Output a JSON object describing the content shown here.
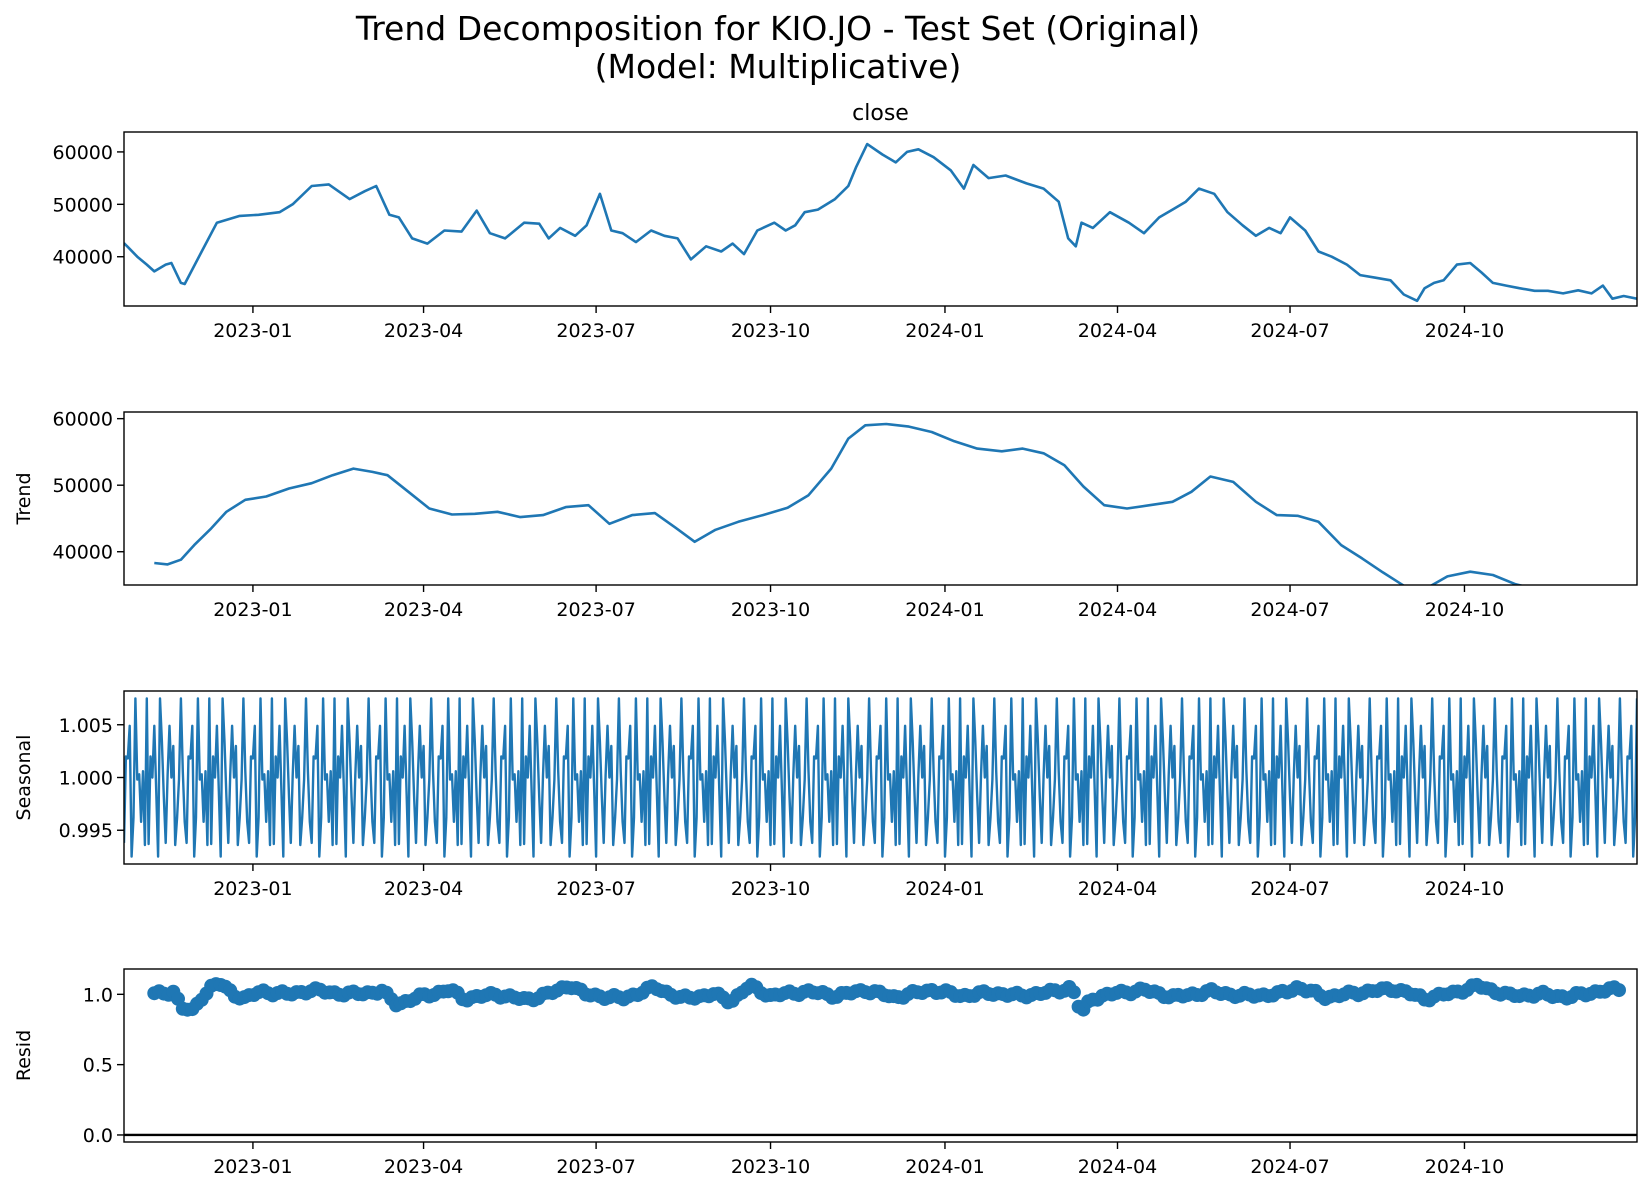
{
  "title_line1": "Trend Decomposition for KIO.JO - Test Set (Original)",
  "title_line2": "(Model: Multiplicative)",
  "chart_data": [
    {
      "type": "line",
      "title": "close",
      "ylabel": "",
      "ylim": [
        30600,
        63800
      ],
      "yticks": [
        40000,
        50000,
        60000
      ],
      "ytick_labels": [
        "40000",
        "50000",
        "60000"
      ],
      "x_start": "2022-10-25",
      "x_end": "2024-12-31",
      "xticks": [
        "2023-01-01",
        "2023-04-01",
        "2023-07-01",
        "2023-10-01",
        "2024-01-01",
        "2024-04-01",
        "2024-07-01",
        "2024-10-01"
      ],
      "xtick_labels": [
        "2023-01",
        "2023-04",
        "2023-07",
        "2023-10",
        "2024-01",
        "2024-04",
        "2024-07",
        "2024-10"
      ],
      "color": "#1f77b4",
      "series": [
        {
          "x": [
            "2022-10-25",
            "2022-11-01",
            "2022-11-06",
            "2022-11-10",
            "2022-11-16",
            "2022-11-19",
            "2022-11-24",
            "2022-11-26",
            "2022-12-05",
            "2022-12-13",
            "2022-12-25",
            "2023-01-04",
            "2023-01-15",
            "2023-01-22",
            "2023-02-01",
            "2023-02-10",
            "2023-02-21",
            "2023-03-01",
            "2023-03-07",
            "2023-03-14",
            "2023-03-19",
            "2023-03-26",
            "2023-04-03",
            "2023-04-12",
            "2023-04-21",
            "2023-04-29",
            "2023-05-06",
            "2023-05-14",
            "2023-05-24",
            "2023-06-01",
            "2023-06-06",
            "2023-06-12",
            "2023-06-20",
            "2023-06-26",
            "2023-07-03",
            "2023-07-09",
            "2023-07-15",
            "2023-07-22",
            "2023-07-30",
            "2023-08-06",
            "2023-08-13",
            "2023-08-20",
            "2023-08-28",
            "2023-09-05",
            "2023-09-11",
            "2023-09-17",
            "2023-09-24",
            "2023-10-03",
            "2023-10-09",
            "2023-10-14",
            "2023-10-19",
            "2023-10-26",
            "2023-11-04",
            "2023-11-11",
            "2023-11-15",
            "2023-11-21",
            "2023-11-29",
            "2023-12-06",
            "2023-12-12",
            "2023-12-18",
            "2023-12-26",
            "2024-01-04",
            "2024-01-11",
            "2024-01-16",
            "2024-01-24",
            "2024-02-02",
            "2024-02-13",
            "2024-02-22",
            "2024-03-01",
            "2024-03-06",
            "2024-03-10",
            "2024-03-13",
            "2024-03-19",
            "2024-03-28",
            "2024-04-07",
            "2024-04-15",
            "2024-04-23",
            "2024-04-30",
            "2024-05-07",
            "2024-05-14",
            "2024-05-22",
            "2024-05-29",
            "2024-06-06",
            "2024-06-13",
            "2024-06-20",
            "2024-06-26",
            "2024-07-01",
            "2024-07-09",
            "2024-07-16",
            "2024-07-23",
            "2024-07-31",
            "2024-08-07",
            "2024-08-15",
            "2024-08-23",
            "2024-08-30",
            "2024-09-06",
            "2024-09-10",
            "2024-09-15",
            "2024-09-20",
            "2024-09-27",
            "2024-10-04",
            "2024-10-10",
            "2024-10-16",
            "2024-10-23",
            "2024-10-30",
            "2024-11-07",
            "2024-11-14",
            "2024-11-22",
            "2024-11-30",
            "2024-12-07",
            "2024-12-13",
            "2024-12-18",
            "2024-12-24",
            "2024-12-31"
          ],
          "y": [
            42600,
            40000,
            38500,
            37200,
            38500,
            38800,
            35000,
            34800,
            41000,
            46500,
            47800,
            48000,
            48500,
            50000,
            53500,
            53800,
            51000,
            52500,
            53500,
            48000,
            47500,
            43500,
            42500,
            45000,
            44800,
            48800,
            44500,
            43500,
            46500,
            46300,
            43500,
            45500,
            44000,
            46000,
            52000,
            45000,
            44500,
            42800,
            45000,
            44000,
            43500,
            39500,
            42000,
            41000,
            42500,
            40500,
            45000,
            46500,
            45000,
            46000,
            48500,
            49000,
            51000,
            53500,
            57000,
            61500,
            59500,
            58000,
            60000,
            60500,
            59000,
            56500,
            53000,
            57500,
            55000,
            55500,
            54000,
            53000,
            50500,
            43500,
            42000,
            46500,
            45500,
            48500,
            46500,
            44500,
            47500,
            49000,
            50500,
            53000,
            52000,
            48500,
            46000,
            44000,
            45500,
            44500,
            47500,
            45000,
            41000,
            40000,
            38500,
            36500,
            36000,
            35500,
            32800,
            31600,
            34000,
            35000,
            35500,
            38500,
            38800,
            37000,
            35000,
            34500,
            34000,
            33500,
            33500,
            33000,
            33600,
            33000,
            34500,
            32000,
            32500,
            32000
          ]
        }
      ]
    },
    {
      "type": "line",
      "title": "",
      "ylabel": "Trend",
      "ylim": [
        35000,
        61000
      ],
      "yticks": [
        40000,
        50000,
        60000
      ],
      "ytick_labels": [
        "40000",
        "50000",
        "60000"
      ],
      "x_start": "2022-10-25",
      "x_end": "2024-12-31",
      "xticks": [
        "2023-01-01",
        "2023-04-01",
        "2023-07-01",
        "2023-10-01",
        "2024-01-01",
        "2024-04-01",
        "2024-07-01",
        "2024-10-01"
      ],
      "xtick_labels": [
        "2023-01",
        "2023-04",
        "2023-07",
        "2023-10",
        "2024-01",
        "2024-04",
        "2024-07",
        "2024-10"
      ],
      "color": "#1f77b4",
      "series": [
        {
          "x": [
            "2022-11-10",
            "2022-11-17",
            "2022-11-24",
            "2022-12-01",
            "2022-12-10",
            "2022-12-18",
            "2022-12-28",
            "2023-01-08",
            "2023-01-20",
            "2023-02-01",
            "2023-02-12",
            "2023-02-23",
            "2023-03-05",
            "2023-03-13",
            "2023-03-24",
            "2023-04-04",
            "2023-04-16",
            "2023-04-28",
            "2023-05-10",
            "2023-05-22",
            "2023-06-03",
            "2023-06-15",
            "2023-06-27",
            "2023-07-08",
            "2023-07-20",
            "2023-08-01",
            "2023-08-12",
            "2023-08-22",
            "2023-09-02",
            "2023-09-14",
            "2023-09-27",
            "2023-10-10",
            "2023-10-21",
            "2023-11-02",
            "2023-11-11",
            "2023-11-20",
            "2023-12-01",
            "2023-12-13",
            "2023-12-25",
            "2024-01-06",
            "2024-01-18",
            "2024-01-31",
            "2024-02-11",
            "2024-02-22",
            "2024-03-04",
            "2024-03-14",
            "2024-03-25",
            "2024-04-06",
            "2024-04-18",
            "2024-04-30",
            "2024-05-10",
            "2024-05-20",
            "2024-06-01",
            "2024-06-13",
            "2024-06-24",
            "2024-07-05",
            "2024-07-16",
            "2024-07-28",
            "2024-08-08",
            "2024-08-19",
            "2024-08-30",
            "2024-09-11",
            "2024-09-22",
            "2024-10-04",
            "2024-10-16",
            "2024-10-28",
            "2024-11-09",
            "2024-11-21",
            "2024-12-02",
            "2024-12-14",
            "2024-12-23"
          ],
          "y": [
            38300,
            38100,
            38800,
            41000,
            43500,
            46000,
            47800,
            48300,
            49500,
            50300,
            51500,
            52500,
            52000,
            51500,
            49000,
            46500,
            45600,
            45700,
            46000,
            45200,
            45500,
            46700,
            47000,
            44200,
            45500,
            45800,
            43600,
            41500,
            43300,
            44500,
            45500,
            46600,
            48500,
            52500,
            57000,
            59000,
            59200,
            58800,
            58000,
            56600,
            55500,
            55100,
            55500,
            54800,
            53000,
            49800,
            47000,
            46500,
            47000,
            47500,
            49000,
            51300,
            50500,
            47500,
            45500,
            45400,
            44500,
            41000,
            39000,
            36900,
            34900,
            34500,
            36300,
            37000,
            36500,
            35100,
            34300,
            34200,
            34000,
            34000,
            33600
          ]
        }
      ]
    },
    {
      "type": "line",
      "title": "",
      "ylabel": "Seasonal",
      "ylim": [
        0.9918,
        1.0082
      ],
      "yticks": [
        0.995,
        1.0,
        1.005
      ],
      "ytick_labels": [
        "0.995",
        "1.000",
        "1.005"
      ],
      "x_start": "2022-10-25",
      "x_end": "2024-12-31",
      "xticks": [
        "2023-01-01",
        "2023-04-01",
        "2023-07-01",
        "2023-10-01",
        "2024-01-01",
        "2024-04-01",
        "2024-07-01",
        "2024-10-01"
      ],
      "xtick_labels": [
        "2023-01",
        "2023-04",
        "2023-07",
        "2023-10",
        "2024-01",
        "2024-04",
        "2024-07",
        "2024-10"
      ],
      "color": "#1f77b4",
      "series": [
        {
          "period_days": 33,
          "pattern": [
            0.9938,
            1.002,
            1.0018,
            1.0049,
            0.9925,
            0.9962,
            1.0075,
            0.9998,
            1.0003,
            0.9958,
            1.0006,
            0.9936,
            1.0075,
            0.9937,
            1.002,
            1.0,
            1.0049,
            0.9988,
            0.9925,
            1.0075,
            1.0034,
            0.9982,
            0.9938,
            1.0002,
            1.0049,
            1.0,
            1.003,
            0.9936,
            0.9962,
            0.9998,
            1.0075,
            1.0006,
            0.9958
          ]
        }
      ]
    },
    {
      "type": "scatter",
      "title": "",
      "ylabel": "Resid",
      "ylim": [
        -0.05,
        1.18
      ],
      "yticks": [
        0.0,
        0.5,
        1.0
      ],
      "ytick_labels": [
        "0.0",
        "0.5",
        "1.0"
      ],
      "x_start": "2022-10-25",
      "x_end": "2024-12-31",
      "xticks": [
        "2023-01-01",
        "2023-04-01",
        "2023-07-01",
        "2023-10-01",
        "2024-01-01",
        "2024-04-01",
        "2024-07-01",
        "2024-10-01"
      ],
      "xtick_labels": [
        "2023-01",
        "2023-04",
        "2023-07",
        "2023-10",
        "2024-01",
        "2024-04",
        "2024-07",
        "2024-10"
      ],
      "baseline": 0.0,
      "color": "#1f77b4",
      "series": [
        {
          "x_start": "2022-11-10",
          "x_end": "2024-12-23",
          "step_days": 2.5,
          "anchors": [
            [
              "2022-11-10",
              1.0
            ],
            [
              "2022-11-20",
              1.02
            ],
            [
              "2022-11-25",
              0.9
            ],
            [
              "2022-11-30",
              0.88
            ],
            [
              "2022-12-05",
              0.98
            ],
            [
              "2022-12-10",
              1.05
            ],
            [
              "2022-12-14",
              1.08
            ],
            [
              "2022-12-22",
              1.0
            ],
            [
              "2022-12-28",
              0.97
            ],
            [
              "2023-01-05",
              1.02
            ],
            [
              "2023-01-20",
              1.0
            ],
            [
              "2023-02-01",
              1.03
            ],
            [
              "2023-02-20",
              1.0
            ],
            [
              "2023-03-10",
              1.02
            ],
            [
              "2023-03-18",
              0.93
            ],
            [
              "2023-04-01",
              0.99
            ],
            [
              "2023-04-15",
              1.03
            ],
            [
              "2023-04-22",
              0.97
            ],
            [
              "2023-05-10",
              1.0
            ],
            [
              "2023-05-25",
              0.96
            ],
            [
              "2023-06-10",
              1.02
            ],
            [
              "2023-06-17",
              1.07
            ],
            [
              "2023-06-25",
              1.0
            ],
            [
              "2023-07-15",
              0.97
            ],
            [
              "2023-08-01",
              1.05
            ],
            [
              "2023-08-15",
              0.97
            ],
            [
              "2023-09-01",
              1.0
            ],
            [
              "2023-09-10",
              0.95
            ],
            [
              "2023-09-20",
              1.06
            ],
            [
              "2023-10-01",
              0.99
            ],
            [
              "2023-10-20",
              1.02
            ],
            [
              "2023-11-05",
              0.99
            ],
            [
              "2023-11-20",
              1.03
            ],
            [
              "2023-12-05",
              0.98
            ],
            [
              "2023-12-25",
              1.03
            ],
            [
              "2024-01-10",
              0.99
            ],
            [
              "2024-01-25",
              1.01
            ],
            [
              "2024-02-10",
              0.99
            ],
            [
              "2024-02-28",
              1.02
            ],
            [
              "2024-03-08",
              1.05
            ],
            [
              "2024-03-13",
              0.86
            ],
            [
              "2024-03-18",
              0.97
            ],
            [
              "2024-04-01",
              1.01
            ],
            [
              "2024-04-15",
              1.03
            ],
            [
              "2024-05-01",
              0.98
            ],
            [
              "2024-05-20",
              1.02
            ],
            [
              "2024-06-05",
              0.99
            ],
            [
              "2024-06-25",
              1.0
            ],
            [
              "2024-07-05",
              1.05
            ],
            [
              "2024-07-20",
              0.98
            ],
            [
              "2024-08-05",
              1.01
            ],
            [
              "2024-08-25",
              1.04
            ],
            [
              "2024-09-10",
              0.97
            ],
            [
              "2024-09-25",
              1.01
            ],
            [
              "2024-10-08",
              1.06
            ],
            [
              "2024-10-25",
              0.99
            ],
            [
              "2024-11-10",
              1.0
            ],
            [
              "2024-11-25",
              0.98
            ],
            [
              "2024-12-10",
              1.02
            ],
            [
              "2024-12-23",
              1.04
            ]
          ]
        }
      ]
    }
  ]
}
